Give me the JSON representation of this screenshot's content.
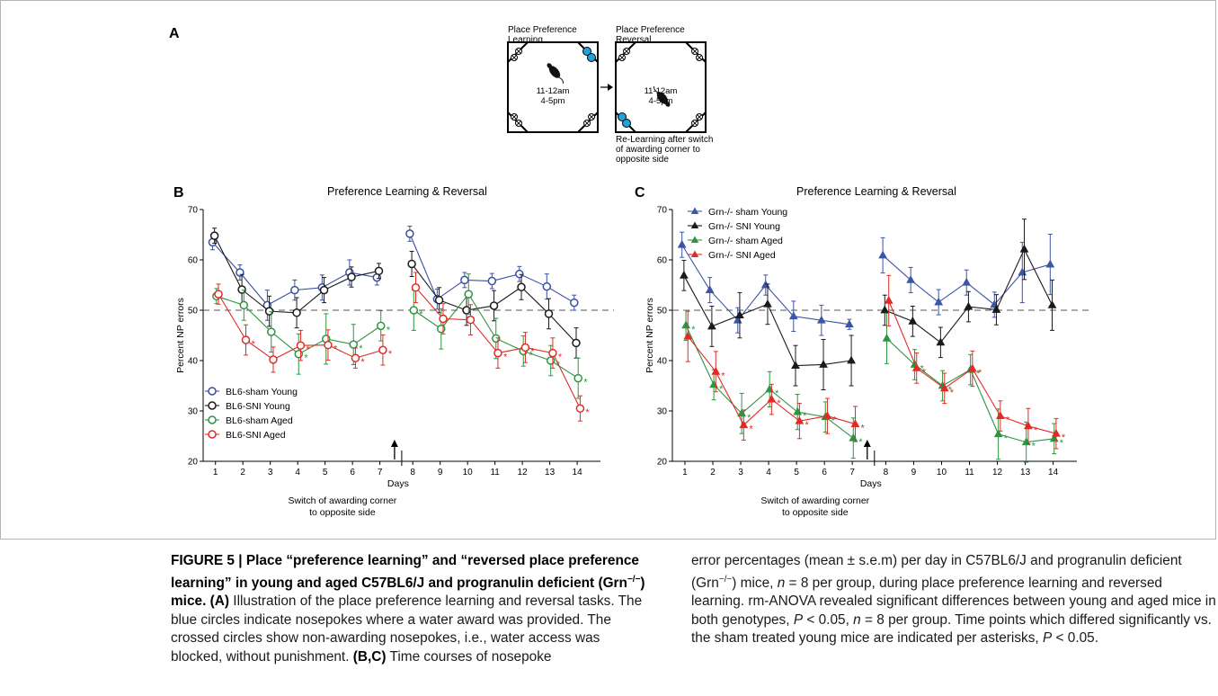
{
  "panel_a": {
    "label": "A",
    "box1_title": "Place Preference\nLearning",
    "box2_title": "Place Preference\nReversal",
    "time_line1": "11-12am",
    "time_line2": "4-5pm",
    "note": "Re-Learning after switch\nof awarding corner to\nopposite side",
    "colors": {
      "award": "#1ea3dd"
    }
  },
  "chart_data": [
    {
      "panel": "B",
      "type": "line",
      "title": "Preference Learning & Reversal",
      "xlabel": "Days",
      "ylabel": "Percent NP errors",
      "x": [
        1,
        2,
        3,
        4,
        5,
        6,
        7,
        8,
        9,
        10,
        11,
        12,
        13,
        14
      ],
      "xticks": [
        "1",
        "2",
        "3",
        "4",
        "5",
        "6",
        "7",
        "8",
        "9",
        "10",
        "11",
        "12",
        "13",
        "14"
      ],
      "ylim": [
        20,
        70
      ],
      "yticks": [
        20,
        30,
        40,
        50,
        60,
        70
      ],
      "reference_line": 50,
      "switch_annotation": "Switch of awarding corner\nto opposite side",
      "marker": "circle-open",
      "legend_position": "bottom-left",
      "series": [
        {
          "name": "BL6-sham Young",
          "color": "#3a4fa0",
          "values": [
            63.5,
            57.5,
            51,
            54,
            54.5,
            57.5,
            56.5,
            65.2,
            52.2,
            56,
            55.8,
            57.2,
            54.7,
            51.5
          ],
          "errors": [
            1.5,
            1.5,
            3,
            2,
            2.5,
            2.5,
            1.5,
            1.5,
            2,
            1.5,
            1.5,
            1.5,
            2.5,
            1.5
          ],
          "stars": []
        },
        {
          "name": "BL6-SNI Young",
          "color": "#1a1a1a",
          "values": [
            64.8,
            54.1,
            49.8,
            49.5,
            54.0,
            56.6,
            57.8,
            59.2,
            52.0,
            50.0,
            50.9,
            54.6,
            49.3,
            43.5
          ],
          "errors": [
            1.5,
            3,
            3,
            3,
            2.5,
            2,
            1.5,
            2.5,
            2.5,
            3,
            3,
            2.5,
            3,
            3
          ],
          "stars": []
        },
        {
          "name": "BL6-sham Aged",
          "color": "#2d9441",
          "values": [
            52.8,
            51.0,
            45.7,
            41.3,
            44.3,
            43.2,
            46.9,
            50.0,
            46.3,
            53.2,
            44.4,
            41.9,
            40.0,
            36.5
          ],
          "errors": [
            1.5,
            3,
            4,
            4,
            5,
            4,
            3,
            4,
            4,
            4,
            4,
            3,
            3,
            4
          ],
          "stars": [
            false,
            false,
            false,
            true,
            false,
            true,
            true,
            true,
            false,
            false,
            false,
            true,
            true,
            true
          ]
        },
        {
          "name": "BL6-SNI Aged",
          "color": "#e02b26",
          "values": [
            53.2,
            44.1,
            40.2,
            43.0,
            43.1,
            40.5,
            42.1,
            54.5,
            48.3,
            48.1,
            41.5,
            42.6,
            41.5,
            30.5
          ],
          "errors": [
            2,
            3,
            2.5,
            3,
            3,
            2,
            3,
            3,
            3,
            3,
            3,
            3,
            3,
            2.5
          ],
          "stars": [
            false,
            true,
            false,
            true,
            true,
            true,
            true,
            false,
            false,
            false,
            true,
            true,
            true,
            true
          ]
        }
      ]
    },
    {
      "panel": "C",
      "type": "line",
      "title": "Preference Learning & Reversal",
      "xlabel": "Days",
      "ylabel": "Percent NP errors",
      "x": [
        1,
        2,
        3,
        4,
        5,
        6,
        7,
        8,
        9,
        10,
        11,
        12,
        13,
        14
      ],
      "xticks": [
        "1",
        "2",
        "3",
        "4",
        "5",
        "6",
        "7",
        "8",
        "9",
        "10",
        "11",
        "12",
        "13",
        "14"
      ],
      "ylim": [
        20,
        70
      ],
      "yticks": [
        20,
        30,
        40,
        50,
        60,
        70
      ],
      "reference_line": 50,
      "switch_annotation": "Switch of awarding corner\nto opposite side",
      "marker": "triangle-filled",
      "legend_position": "top-left",
      "series": [
        {
          "name": "Grn-/- sham Young",
          "color": "#3c55a5",
          "values": [
            63.0,
            54.0,
            48.0,
            55.0,
            48.8,
            48.0,
            47.2,
            60.9,
            56.0,
            51.6,
            55.5,
            51.1,
            57.5,
            59.1
          ],
          "errors": [
            2.5,
            2.5,
            2.5,
            2,
            3,
            3,
            1,
            3.5,
            2.5,
            2.5,
            2.5,
            2.5,
            6,
            6
          ],
          "stars": []
        },
        {
          "name": "Grn-/- SNI Young",
          "color": "#1a1a1a",
          "values": [
            56.9,
            46.8,
            49.0,
            51.2,
            39.0,
            39.2,
            40.0,
            50.0,
            47.8,
            43.6,
            50.7,
            50.1,
            62.1,
            51.0
          ],
          "errors": [
            3,
            4,
            4.5,
            4,
            4,
            5,
            5,
            3,
            3,
            3,
            3,
            3,
            6,
            5
          ],
          "stars": []
        },
        {
          "name": "Grn-/- sham Aged",
          "color": "#2d9441",
          "values": [
            47.0,
            35.2,
            29.5,
            34.3,
            29.8,
            28.8,
            24.6,
            44.4,
            39.2,
            35.0,
            38.2,
            25.4,
            23.8,
            24.5
          ],
          "errors": [
            3,
            3,
            4,
            3.5,
            3.5,
            3,
            4,
            5,
            3,
            3,
            3,
            5,
            4,
            3
          ],
          "stars": [
            true,
            true,
            true,
            true,
            true,
            true,
            true,
            false,
            true,
            true,
            true,
            true,
            true,
            true
          ]
        },
        {
          "name": "Grn-/- SNI Aged",
          "color": "#e02b26",
          "values": [
            44.8,
            37.8,
            27.2,
            32.3,
            28.0,
            29.0,
            27.4,
            51.9,
            38.5,
            34.5,
            38.4,
            29.0,
            27.0,
            25.5
          ],
          "errors": [
            5,
            4,
            3,
            3,
            3.5,
            3.5,
            3.5,
            5,
            3,
            3,
            3.5,
            3,
            3.5,
            3
          ],
          "stars": [
            false,
            true,
            true,
            true,
            true,
            true,
            true,
            false,
            true,
            true,
            true,
            true,
            true,
            true
          ]
        }
      ]
    }
  ],
  "caption": {
    "fig_label": "FIGURE 5 | Place “preference learning” and “reversed place preference learning” in young and aged C57BL6/J and progranulin deficient (Grn",
    "fig_sup": "−/−",
    "fig_end": ") mice.",
    "a_label": "(A)",
    "a_text": " Illustration of the place preference learning and reversal tasks. The blue circles indicate nosepokes where a water award was provided. The crossed circles show non-awarding nosepokes, i.e., water access was blocked, without punishment. ",
    "bc_label": "(B,C)",
    "bc_text": " Time courses of nosepoke error percentages (mean ± s.e.m) per day in C57BL6/J and progranulin deficient (Grn",
    "bc_sup": "−/−",
    "bc_text2": ") mice, ",
    "bc_n1": "n",
    "bc_text3": " = 8 per group, during place preference learning and reversed learning. rm-ANOVA revealed significant differences between young and aged mice in both genotypes, ",
    "bc_p1": "P",
    "bc_text4": " < 0.05, ",
    "bc_n2": "n",
    "bc_text5": " = 8 per group. Time points which differed significantly vs. the sham treated young mice are indicated per asterisks, ",
    "bc_p2": "P",
    "bc_text6": " < 0.05."
  }
}
